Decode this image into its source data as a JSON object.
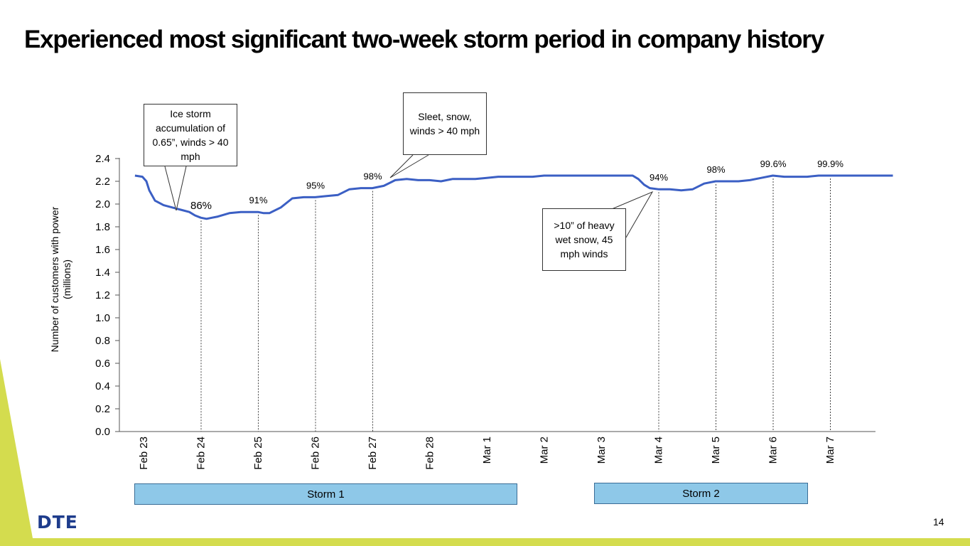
{
  "page": {
    "title": "Experienced most significant two-week storm period in company history",
    "logo_text": "DTE",
    "page_number": "14",
    "accent_color": "#d4dc4e",
    "line_color": "#3b5fc4",
    "logo_color": "#1e3c8c"
  },
  "callouts": {
    "ice_storm": "Ice storm accumulation of 0.65”, winds > 40 mph",
    "sleet": "Sleet, snow, winds > 40 mph",
    "heavy_snow": ">10” of heavy wet snow, 45 mph winds"
  },
  "storms": {
    "storm1": "Storm 1",
    "storm2": "Storm 2"
  },
  "chart_data": {
    "type": "line",
    "title": "",
    "xlabel": "",
    "ylabel": "Number of customers with power (millions)",
    "ylabel_lines": [
      "Number of customers with power",
      "(millions)"
    ],
    "ylim": [
      0,
      2.4
    ],
    "xlim": [
      -0.15,
      13.1
    ],
    "yticks": [
      0.0,
      0.2,
      0.4,
      0.6,
      0.8,
      1.0,
      1.2,
      1.4,
      1.6,
      1.8,
      2.0,
      2.2,
      2.4
    ],
    "ytick_labels": [
      "0.0",
      "0.2",
      "0.4",
      "0.6",
      "0.8",
      "1.0",
      "1.2",
      "1.4",
      "1.6",
      "1.8",
      "2.0",
      "2.2",
      "2.4"
    ],
    "categories": [
      "Feb 23",
      "Feb 24",
      "Feb 25",
      "Feb 26",
      "Feb 27",
      "Feb 28",
      "Mar 1",
      "Mar 2",
      "Mar 3",
      "Mar 4",
      "Mar 5",
      "Mar 6",
      "Mar 7"
    ],
    "series": [
      {
        "name": "Customers with power",
        "x": [
          -0.15,
          -0.02,
          0.05,
          0.1,
          0.2,
          0.35,
          0.5,
          0.65,
          0.8,
          0.9,
          1.0,
          1.1,
          1.2,
          1.3,
          1.5,
          1.7,
          1.9,
          2.0,
          2.1,
          2.2,
          2.4,
          2.6,
          2.8,
          3.0,
          3.2,
          3.4,
          3.6,
          3.8,
          4.0,
          4.2,
          4.4,
          4.6,
          4.8,
          5.0,
          5.2,
          5.4,
          5.6,
          5.8,
          6.0,
          6.2,
          6.4,
          6.6,
          6.8,
          7.0,
          7.2,
          7.4,
          7.6,
          7.8,
          8.0,
          8.2,
          8.4,
          8.55,
          8.65,
          8.75,
          8.85,
          9.0,
          9.2,
          9.4,
          9.6,
          9.8,
          10.0,
          10.2,
          10.4,
          10.6,
          10.8,
          11.0,
          11.2,
          11.4,
          11.6,
          11.8,
          12.0,
          12.2,
          12.4,
          12.6,
          12.8,
          13.0,
          13.1
        ],
        "values": [
          2.25,
          2.24,
          2.2,
          2.12,
          2.03,
          1.99,
          1.97,
          1.95,
          1.93,
          1.9,
          1.88,
          1.87,
          1.88,
          1.89,
          1.92,
          1.93,
          1.93,
          1.93,
          1.92,
          1.92,
          1.97,
          2.05,
          2.06,
          2.06,
          2.07,
          2.08,
          2.13,
          2.14,
          2.14,
          2.16,
          2.21,
          2.22,
          2.21,
          2.21,
          2.2,
          2.22,
          2.22,
          2.22,
          2.23,
          2.24,
          2.24,
          2.24,
          2.24,
          2.25,
          2.25,
          2.25,
          2.25,
          2.25,
          2.25,
          2.25,
          2.25,
          2.25,
          2.22,
          2.17,
          2.14,
          2.13,
          2.13,
          2.12,
          2.13,
          2.18,
          2.2,
          2.2,
          2.2,
          2.21,
          2.23,
          2.25,
          2.24,
          2.24,
          2.24,
          2.25,
          2.25,
          2.25,
          2.25,
          2.25,
          2.25,
          2.25,
          2.25
        ]
      }
    ],
    "restoration_markers": [
      {
        "x": 1.0,
        "label": "86%"
      },
      {
        "x": 2.0,
        "label": "91%"
      },
      {
        "x": 3.0,
        "label": "95%"
      },
      {
        "x": 4.0,
        "label": "98%"
      },
      {
        "x": 9.0,
        "label": "94%"
      },
      {
        "x": 10.0,
        "label": "98%"
      },
      {
        "x": 11.0,
        "label": "99.6%"
      },
      {
        "x": 12.0,
        "label": "99.9%"
      }
    ],
    "annotations": [
      "Ice storm accumulation of 0.65”, winds > 40 mph",
      "Sleet, snow, winds > 40 mph",
      ">10” of heavy wet snow, 45 mph winds"
    ],
    "storm_periods": [
      {
        "label": "Storm 1",
        "start": 0.0,
        "end": 6.7
      },
      {
        "label": "Storm 2",
        "start": 8.2,
        "end": 11.95
      }
    ]
  }
}
